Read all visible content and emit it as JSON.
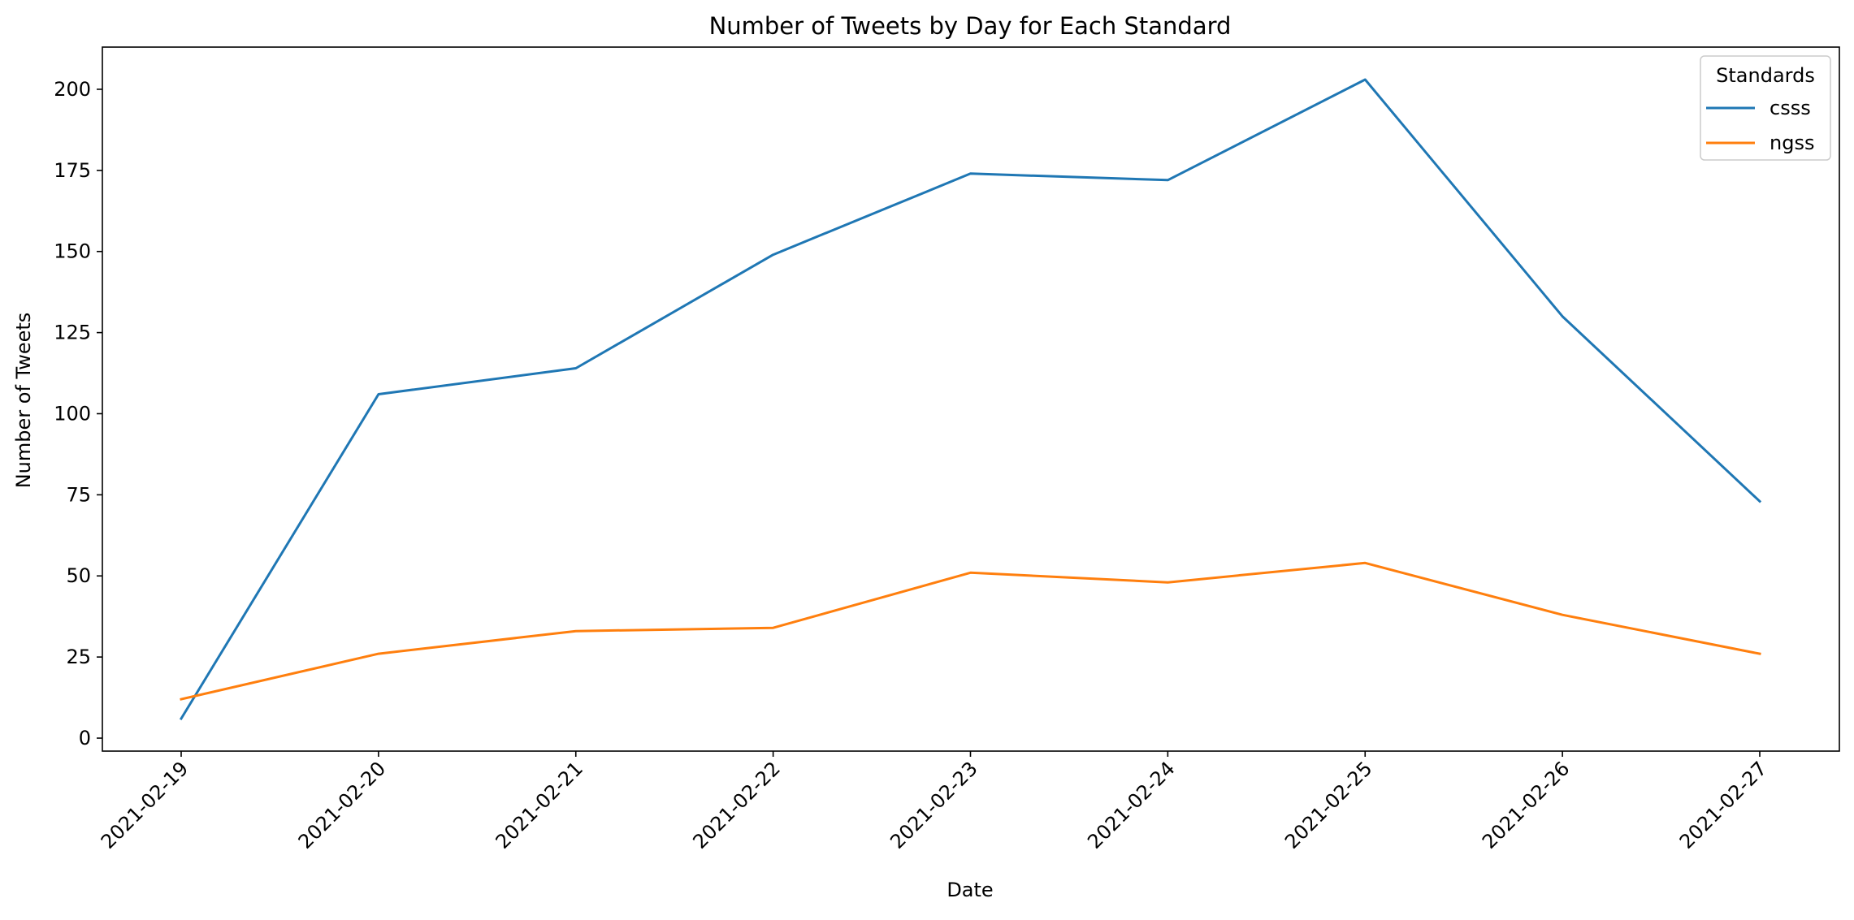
{
  "chart_data": {
    "type": "line",
    "title": "Number of Tweets by Day for Each Standard",
    "xlabel": "Date",
    "ylabel": "Number of Tweets",
    "categories": [
      "2021-02-19",
      "2021-02-20",
      "2021-02-21",
      "2021-02-22",
      "2021-02-23",
      "2021-02-24",
      "2021-02-25",
      "2021-02-26",
      "2021-02-27"
    ],
    "yticks": [
      0,
      25,
      50,
      75,
      100,
      125,
      150,
      175,
      200
    ],
    "ylim": [
      -4,
      213
    ],
    "grid": false,
    "legend": {
      "title": "Standards",
      "position": "top-right"
    },
    "series": [
      {
        "name": "csss",
        "color": "#1f77b4",
        "values": [
          6,
          106,
          114,
          149,
          174,
          172,
          203,
          130,
          73
        ]
      },
      {
        "name": "ngss",
        "color": "#ff7f0e",
        "values": [
          12,
          26,
          33,
          34,
          51,
          48,
          54,
          38,
          26
        ]
      }
    ]
  }
}
